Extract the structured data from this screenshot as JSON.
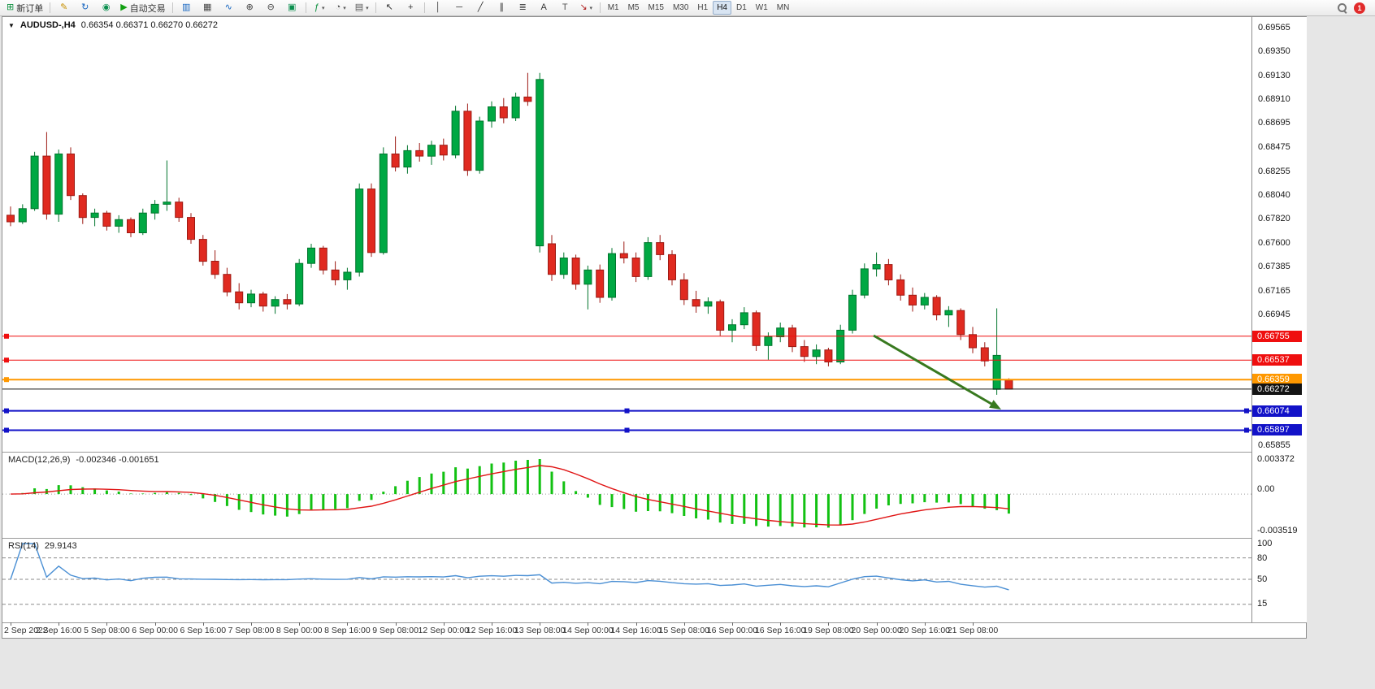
{
  "toolbar": {
    "items": [
      {
        "name": "new-order-button",
        "icon": "new-order-icon",
        "label": "新订单"
      },
      {
        "sep": true
      },
      {
        "name": "chart-edit-button",
        "icon": "pencil-icon"
      },
      {
        "name": "refresh-button",
        "icon": "refresh-icon"
      },
      {
        "name": "support-button",
        "icon": "headset-icon"
      },
      {
        "name": "auto-trading-button",
        "icon": "play-icon",
        "label": "自动交易"
      },
      {
        "sep": true
      },
      {
        "name": "bar-chart-button",
        "icon": "bar-chart-icon"
      },
      {
        "name": "candlestick-chart-button",
        "icon": "candlestick-chart-icon"
      },
      {
        "name": "line-chart-button",
        "icon": "line-chart-icon"
      },
      {
        "name": "zoom-in-button",
        "icon": "zoom-in-icon"
      },
      {
        "name": "zoom-out-button",
        "icon": "zoom-out-icon"
      },
      {
        "name": "tile-windows-button",
        "icon": "tile-windows-icon"
      },
      {
        "sep": true
      },
      {
        "name": "indicators-button",
        "icon": "indicators-icon",
        "caret": true
      },
      {
        "name": "periods-button",
        "icon": "clock-icon",
        "caret": true
      },
      {
        "name": "templates-button",
        "icon": "templates-icon",
        "caret": true
      },
      {
        "sep": true
      },
      {
        "name": "cursor-button",
        "icon": "cursor-icon"
      },
      {
        "name": "crosshair-button",
        "icon": "crosshair-icon"
      },
      {
        "sep": true
      },
      {
        "name": "vertical-line-button",
        "icon": "vertical-line-icon"
      },
      {
        "name": "horizontal-line-button",
        "icon": "horizontal-line-icon"
      },
      {
        "name": "trendline-button",
        "icon": "trendline-icon"
      },
      {
        "name": "channel-button",
        "icon": "channel-icon"
      },
      {
        "name": "fibonacci-button",
        "icon": "fibonacci-icon"
      },
      {
        "name": "text-button",
        "icon": "text-icon"
      },
      {
        "name": "text-label-button",
        "icon": "text-label-icon"
      },
      {
        "name": "arrows-button",
        "icon": "arrows-icon",
        "caret": true
      },
      {
        "sep": true
      }
    ],
    "timeframes": [
      "M1",
      "M5",
      "M15",
      "M30",
      "H1",
      "H4",
      "D1",
      "W1",
      "MN"
    ],
    "active_timeframe": "H4",
    "notification_count": "1"
  },
  "chart": {
    "symbol_label": "AUDUSD-,H4",
    "ohlc_text": "0.66354 0.66371 0.66270 0.66272",
    "y_ticks": [
      "0.69565",
      "0.69350",
      "0.69130",
      "0.68910",
      "0.68695",
      "0.68475",
      "0.68255",
      "0.68040",
      "0.67820",
      "0.67600",
      "0.67385",
      "0.67165",
      "0.66945"
    ],
    "y_bottom_tick": "0.65855",
    "hlines": [
      {
        "price": 0.66755,
        "label": "0.66755",
        "color": "#ef0f0f",
        "width": 1,
        "handles": "left"
      },
      {
        "price": 0.66537,
        "label": "0.66537",
        "color": "#ef0f0f",
        "width": 1,
        "handles": "left"
      },
      {
        "price": 0.66359,
        "label": "0.66359",
        "color": "#ff9800",
        "width": 2,
        "handles": "left"
      },
      {
        "price": 0.66074,
        "label": "0.66074",
        "color": "#1212c8",
        "width": 2,
        "handles": "all"
      },
      {
        "price": 0.65897,
        "label": "0.65897",
        "color": "#1212c8",
        "width": 2,
        "handles": "all"
      }
    ],
    "price_line": {
      "price": 0.66272,
      "label": "0.66272",
      "color": "#141414"
    },
    "arrow": {
      "from": [
        1072,
        392
      ],
      "to": [
        1229,
        483
      ],
      "color": "#38791f"
    },
    "colors": {
      "up": "#00a843",
      "up_edge": "#00742c",
      "down": "#e02a20",
      "down_edge": "#9c1a13",
      "macd_hist": "#12c112",
      "macd_signal": "#e01414",
      "rsi_line": "#4a8fd4"
    }
  },
  "chart_data": {
    "type": "candlestick",
    "title": "AUDUSD H4",
    "y_view": [
      0.657,
      0.6967
    ],
    "x_label_step": 4,
    "x_labels": [
      "2 Sep 2022",
      "2 Sep 16:00",
      "5 Sep 08:00",
      "6 Sep 00:00",
      "6 Sep 16:00",
      "7 Sep 08:00",
      "8 Sep 00:00",
      "8 Sep 16:00",
      "9 Sep 08:00",
      "12 Sep 00:00",
      "12 Sep 16:00",
      "13 Sep 08:00",
      "14 Sep 00:00",
      "14 Sep 16:00",
      "15 Sep 08:00",
      "16 Sep 00:00",
      "16 Sep 16:00",
      "19 Sep 08:00",
      "20 Sep 00:00",
      "20 Sep 16:00",
      "21 Sep 08:00"
    ],
    "candles": [
      [
        0.6786,
        0.6794,
        0.6776,
        0.678
      ],
      [
        0.678,
        0.6796,
        0.6778,
        0.6792
      ],
      [
        0.6792,
        0.6844,
        0.679,
        0.684
      ],
      [
        0.684,
        0.6862,
        0.6782,
        0.6787
      ],
      [
        0.6787,
        0.6846,
        0.678,
        0.6842
      ],
      [
        0.6842,
        0.6848,
        0.68,
        0.6804
      ],
      [
        0.6804,
        0.6806,
        0.6778,
        0.6784
      ],
      [
        0.6784,
        0.6792,
        0.6776,
        0.6788
      ],
      [
        0.6788,
        0.679,
        0.6772,
        0.6776
      ],
      [
        0.6776,
        0.6786,
        0.677,
        0.6782
      ],
      [
        0.6782,
        0.6784,
        0.6766,
        0.677
      ],
      [
        0.677,
        0.6792,
        0.6768,
        0.6788
      ],
      [
        0.6788,
        0.68,
        0.6782,
        0.6796
      ],
      [
        0.6796,
        0.6836,
        0.679,
        0.6798
      ],
      [
        0.6798,
        0.6802,
        0.678,
        0.6784
      ],
      [
        0.6784,
        0.6788,
        0.676,
        0.6764
      ],
      [
        0.6764,
        0.6768,
        0.674,
        0.6744
      ],
      [
        0.6744,
        0.6754,
        0.6728,
        0.6732
      ],
      [
        0.6732,
        0.6738,
        0.6712,
        0.6716
      ],
      [
        0.6716,
        0.6724,
        0.67,
        0.6706
      ],
      [
        0.6706,
        0.6718,
        0.6702,
        0.6714
      ],
      [
        0.6714,
        0.6716,
        0.6698,
        0.6703
      ],
      [
        0.6703,
        0.6712,
        0.6696,
        0.6709
      ],
      [
        0.6709,
        0.6714,
        0.67,
        0.6705
      ],
      [
        0.6705,
        0.6746,
        0.6703,
        0.6742
      ],
      [
        0.6742,
        0.676,
        0.6738,
        0.6756
      ],
      [
        0.6756,
        0.6758,
        0.6732,
        0.6736
      ],
      [
        0.6736,
        0.6744,
        0.6722,
        0.6727
      ],
      [
        0.6727,
        0.6738,
        0.6718,
        0.6734
      ],
      [
        0.6734,
        0.6815,
        0.673,
        0.681
      ],
      [
        0.681,
        0.6815,
        0.6748,
        0.6752
      ],
      [
        0.6752,
        0.6848,
        0.675,
        0.6842
      ],
      [
        0.6842,
        0.6858,
        0.6826,
        0.683
      ],
      [
        0.683,
        0.685,
        0.6824,
        0.6845
      ],
      [
        0.6845,
        0.6852,
        0.6835,
        0.684
      ],
      [
        0.684,
        0.6854,
        0.6832,
        0.685
      ],
      [
        0.685,
        0.6856,
        0.6836,
        0.6841
      ],
      [
        0.6841,
        0.6886,
        0.6838,
        0.6881
      ],
      [
        0.6881,
        0.6888,
        0.6822,
        0.6827
      ],
      [
        0.6827,
        0.6876,
        0.6824,
        0.6872
      ],
      [
        0.6872,
        0.689,
        0.6866,
        0.6885
      ],
      [
        0.6885,
        0.6893,
        0.687,
        0.6875
      ],
      [
        0.6875,
        0.6898,
        0.6872,
        0.6894
      ],
      [
        0.6894,
        0.6916,
        0.6886,
        0.689
      ],
      [
        0.6758,
        0.6916,
        0.6752,
        0.691
      ],
      [
        0.676,
        0.6768,
        0.6726,
        0.6732
      ],
      [
        0.6732,
        0.6752,
        0.6728,
        0.6747
      ],
      [
        0.6747,
        0.675,
        0.6718,
        0.6723
      ],
      [
        0.6723,
        0.674,
        0.67,
        0.6736
      ],
      [
        0.6736,
        0.6741,
        0.6706,
        0.6711
      ],
      [
        0.6711,
        0.6756,
        0.6708,
        0.6751
      ],
      [
        0.6751,
        0.6762,
        0.6742,
        0.6747
      ],
      [
        0.6747,
        0.6752,
        0.6725,
        0.673
      ],
      [
        0.673,
        0.6766,
        0.6727,
        0.6761
      ],
      [
        0.6761,
        0.6768,
        0.6745,
        0.675
      ],
      [
        0.675,
        0.6754,
        0.6722,
        0.6727
      ],
      [
        0.6727,
        0.6733,
        0.6704,
        0.6709
      ],
      [
        0.6709,
        0.6717,
        0.6697,
        0.6703
      ],
      [
        0.6703,
        0.6711,
        0.6696,
        0.6707
      ],
      [
        0.6707,
        0.6709,
        0.6676,
        0.6681
      ],
      [
        0.6681,
        0.6691,
        0.667,
        0.6686
      ],
      [
        0.6686,
        0.6702,
        0.6682,
        0.6697
      ],
      [
        0.6697,
        0.6699,
        0.6662,
        0.6667
      ],
      [
        0.6667,
        0.6679,
        0.6654,
        0.6675
      ],
      [
        0.6675,
        0.6688,
        0.667,
        0.6683
      ],
      [
        0.6683,
        0.6686,
        0.6661,
        0.6666
      ],
      [
        0.6666,
        0.6672,
        0.6652,
        0.6657
      ],
      [
        0.6657,
        0.6668,
        0.665,
        0.6663
      ],
      [
        0.6663,
        0.6665,
        0.6648,
        0.6652
      ],
      [
        0.6652,
        0.6686,
        0.665,
        0.6681
      ],
      [
        0.6681,
        0.6718,
        0.6678,
        0.6713
      ],
      [
        0.6713,
        0.6742,
        0.671,
        0.6737
      ],
      [
        0.6737,
        0.6752,
        0.673,
        0.6741
      ],
      [
        0.6741,
        0.6746,
        0.6722,
        0.6727
      ],
      [
        0.6727,
        0.6732,
        0.6708,
        0.6713
      ],
      [
        0.6713,
        0.672,
        0.6698,
        0.6704
      ],
      [
        0.6704,
        0.6715,
        0.67,
        0.6711
      ],
      [
        0.6711,
        0.6713,
        0.669,
        0.6695
      ],
      [
        0.6695,
        0.6703,
        0.6684,
        0.6699
      ],
      [
        0.6699,
        0.6701,
        0.6672,
        0.6677
      ],
      [
        0.6677,
        0.6684,
        0.666,
        0.6665
      ],
      [
        0.6665,
        0.667,
        0.6648,
        0.6653
      ],
      [
        0.6627,
        0.6701,
        0.6622,
        0.6658
      ],
      [
        0.66354,
        0.66371,
        0.6627,
        0.66272
      ]
    ]
  },
  "macd": {
    "title": "MACD(12,26,9)",
    "values_text": "-0.002346 -0.001651",
    "fast": 12,
    "slow": 26,
    "signal": 9,
    "axis_max": "0.003372",
    "axis_zero": "0.00",
    "axis_min": "-0.003519",
    "range": [
      -0.003519,
      0.003372
    ]
  },
  "rsi": {
    "title": "RSI(14)",
    "value_text": "29.9143",
    "period": 14,
    "levels": [
      "100",
      "80",
      "50",
      "15"
    ],
    "level_lines": [
      80,
      50,
      15
    ]
  }
}
